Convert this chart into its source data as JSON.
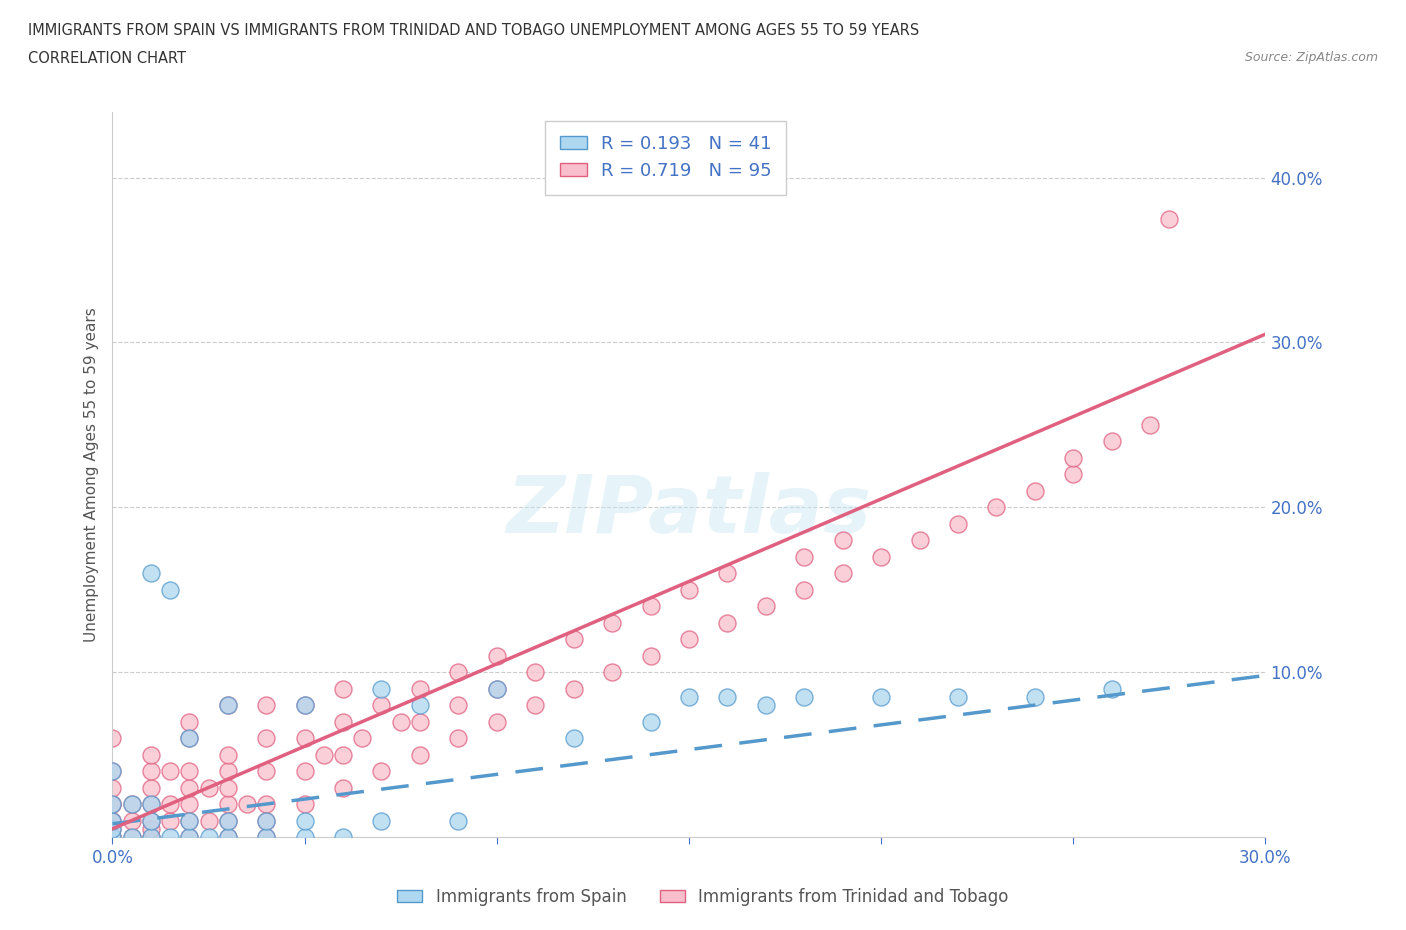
{
  "title_line1": "IMMIGRANTS FROM SPAIN VS IMMIGRANTS FROM TRINIDAD AND TOBAGO UNEMPLOYMENT AMONG AGES 55 TO 59 YEARS",
  "title_line2": "CORRELATION CHART",
  "source": "Source: ZipAtlas.com",
  "ylabel": "Unemployment Among Ages 55 to 59 years",
  "xlim": [
    0.0,
    0.3
  ],
  "ylim": [
    0.0,
    0.44
  ],
  "xticks": [
    0.0,
    0.05,
    0.1,
    0.15,
    0.2,
    0.25,
    0.3
  ],
  "yticks": [
    0.0,
    0.1,
    0.2,
    0.3,
    0.4
  ],
  "spain_color": "#ADD8F0",
  "spain_edge_color": "#5599CC",
  "tt_color": "#F9BFCC",
  "tt_edge_color": "#E06080",
  "spain_line_color": "#5599CC",
  "tt_line_color": "#E06080",
  "spain_R": 0.193,
  "spain_N": 41,
  "tt_R": 0.719,
  "tt_N": 95,
  "watermark": "ZIPatlas",
  "background_color": "#ffffff",
  "spain_x": [
    0.0,
    0.0,
    0.0,
    0.0,
    0.0,
    0.005,
    0.005,
    0.01,
    0.01,
    0.01,
    0.01,
    0.015,
    0.015,
    0.02,
    0.02,
    0.02,
    0.025,
    0.03,
    0.03,
    0.03,
    0.04,
    0.04,
    0.05,
    0.05,
    0.05,
    0.06,
    0.07,
    0.07,
    0.08,
    0.09,
    0.1,
    0.12,
    0.14,
    0.15,
    0.16,
    0.17,
    0.18,
    0.2,
    0.22,
    0.24,
    0.26
  ],
  "spain_y": [
    0.0,
    0.005,
    0.01,
    0.02,
    0.04,
    0.0,
    0.02,
    0.0,
    0.01,
    0.02,
    0.16,
    0.0,
    0.15,
    0.0,
    0.01,
    0.06,
    0.0,
    0.0,
    0.01,
    0.08,
    0.0,
    0.01,
    0.0,
    0.01,
    0.08,
    0.0,
    0.01,
    0.09,
    0.08,
    0.01,
    0.09,
    0.06,
    0.07,
    0.085,
    0.085,
    0.08,
    0.085,
    0.085,
    0.085,
    0.085,
    0.09
  ],
  "tt_x": [
    0.0,
    0.0,
    0.0,
    0.0,
    0.0,
    0.0,
    0.0,
    0.0,
    0.0,
    0.0,
    0.005,
    0.005,
    0.005,
    0.01,
    0.01,
    0.01,
    0.01,
    0.01,
    0.01,
    0.01,
    0.015,
    0.015,
    0.015,
    0.02,
    0.02,
    0.02,
    0.02,
    0.02,
    0.02,
    0.02,
    0.025,
    0.025,
    0.03,
    0.03,
    0.03,
    0.03,
    0.03,
    0.03,
    0.03,
    0.035,
    0.04,
    0.04,
    0.04,
    0.04,
    0.04,
    0.04,
    0.05,
    0.05,
    0.05,
    0.05,
    0.055,
    0.06,
    0.06,
    0.06,
    0.06,
    0.065,
    0.07,
    0.07,
    0.075,
    0.08,
    0.08,
    0.08,
    0.09,
    0.09,
    0.09,
    0.1,
    0.1,
    0.1,
    0.11,
    0.11,
    0.12,
    0.12,
    0.13,
    0.13,
    0.14,
    0.14,
    0.15,
    0.15,
    0.16,
    0.16,
    0.17,
    0.18,
    0.18,
    0.19,
    0.19,
    0.2,
    0.21,
    0.22,
    0.23,
    0.24,
    0.25,
    0.25,
    0.26,
    0.27,
    0.275
  ],
  "tt_y": [
    0.0,
    0.0,
    0.005,
    0.01,
    0.01,
    0.02,
    0.02,
    0.03,
    0.04,
    0.06,
    0.0,
    0.01,
    0.02,
    0.0,
    0.005,
    0.01,
    0.02,
    0.03,
    0.04,
    0.05,
    0.01,
    0.02,
    0.04,
    0.0,
    0.01,
    0.02,
    0.03,
    0.04,
    0.06,
    0.07,
    0.01,
    0.03,
    0.0,
    0.01,
    0.02,
    0.03,
    0.04,
    0.05,
    0.08,
    0.02,
    0.0,
    0.01,
    0.02,
    0.04,
    0.06,
    0.08,
    0.02,
    0.04,
    0.06,
    0.08,
    0.05,
    0.03,
    0.05,
    0.07,
    0.09,
    0.06,
    0.04,
    0.08,
    0.07,
    0.05,
    0.07,
    0.09,
    0.06,
    0.08,
    0.1,
    0.07,
    0.09,
    0.11,
    0.08,
    0.1,
    0.09,
    0.12,
    0.1,
    0.13,
    0.11,
    0.14,
    0.12,
    0.15,
    0.13,
    0.16,
    0.14,
    0.15,
    0.17,
    0.16,
    0.18,
    0.17,
    0.18,
    0.19,
    0.2,
    0.21,
    0.22,
    0.23,
    0.24,
    0.25,
    0.375
  ]
}
